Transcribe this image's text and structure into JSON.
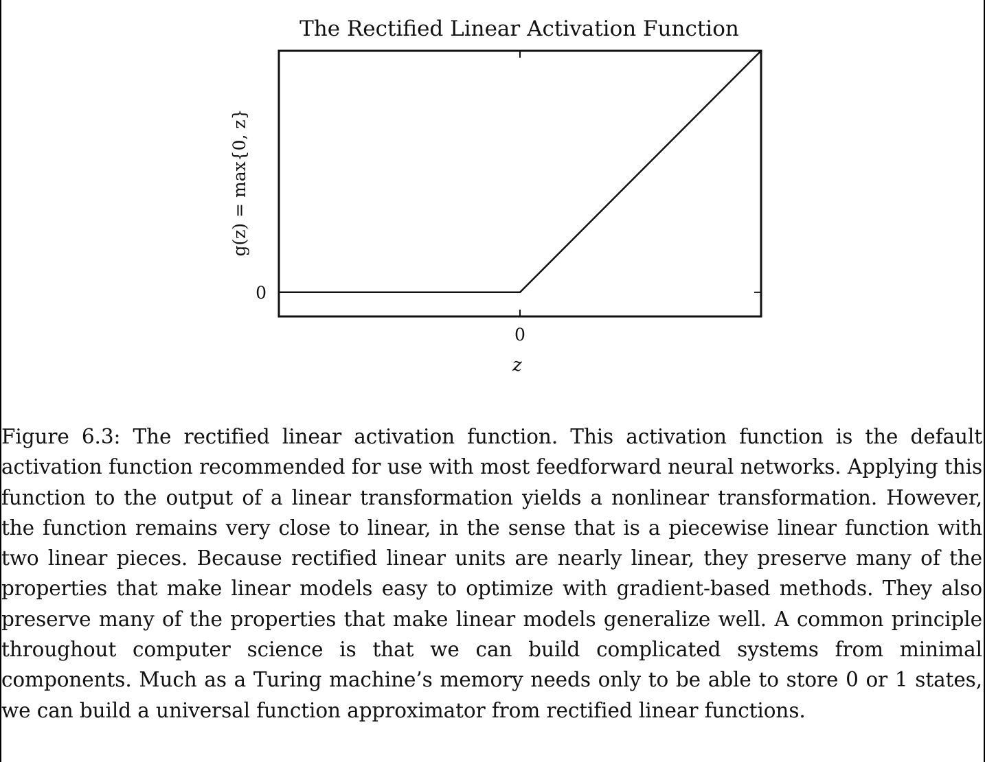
{
  "chart_data": {
    "type": "line",
    "title": "The Rectified Linear Activation Function",
    "xlabel": "z",
    "ylabel": "g(z) = max{0, z}",
    "x_ticks": [
      "0"
    ],
    "y_ticks": [
      "0"
    ],
    "xlim": [
      -1,
      1
    ],
    "ylim": [
      -0.1,
      1
    ],
    "grid": false,
    "series": [
      {
        "x": [
          -1,
          0,
          1
        ],
        "y": [
          0,
          0,
          1
        ]
      }
    ]
  },
  "caption": {
    "text": "Figure 6.3: The rectified linear activation function. This activation function is the default activation function recommended for use with most feedforward neural networks. Applying this function to the output of a linear transformation yields a nonlinear transformation. However, the function remains very close to linear, in the sense that is a piecewise linear function with two linear pieces. Because rectified linear units are nearly linear, they preserve many of the properties that make linear models easy to optimize with gradient-based methods. They also preserve many of the properties that make linear models generalize well. A common principle throughout computer science is that we can build complicated systems from minimal components. Much as a Turing machine’s memory needs only to be able to store 0 or 1 states, we can build a universal function approximator from rectified linear functions."
  }
}
